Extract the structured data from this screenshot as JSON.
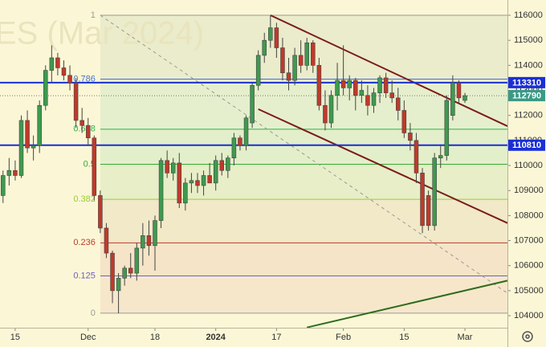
{
  "chart_data": {
    "type": "candlestick",
    "watermark": "ES (Mar 2024)",
    "open": [
      108800,
      109600,
      109800,
      109600,
      111800,
      110700,
      110800,
      112400,
      113800,
      114300,
      113900,
      113600,
      113300,
      111800,
      111600,
      111100,
      108800,
      107500,
      106500,
      105000,
      105500,
      105900,
      105700,
      106700,
      107200,
      106800,
      107800,
      110200,
      109700,
      110100,
      108500,
      109300,
      109400,
      109200,
      109600,
      109300,
      110200,
      109800,
      110300,
      111100,
      110800,
      111700,
      113200,
      114400,
      115000,
      115500,
      114700,
      113700,
      113400,
      114400,
      114000,
      114900,
      114000,
      112400,
      111700,
      112800,
      113400,
      113100,
      113400,
      112800,
      112800,
      112400,
      112900,
      113500,
      112900,
      112700,
      112200,
      111300,
      111000,
      109700,
      108800,
      107600,
      110300,
      110400,
      112000,
      113300,
      112600
    ],
    "high": [
      109800,
      110300,
      110200,
      112000,
      112200,
      111200,
      112600,
      114000,
      114800,
      114500,
      114200,
      114000,
      113500,
      112300,
      111900,
      111200,
      109000,
      107700,
      106600,
      105700,
      106000,
      106500,
      106900,
      107700,
      107800,
      108000,
      110300,
      110600,
      110300,
      110500,
      109500,
      109700,
      109700,
      109800,
      110100,
      110400,
      110500,
      110400,
      111300,
      111200,
      112000,
      113300,
      114600,
      115300,
      116000,
      115700,
      115100,
      114300,
      114700,
      115000,
      115100,
      115000,
      114300,
      113000,
      113000,
      114100,
      114800,
      113600,
      113500,
      113400,
      113200,
      113100,
      113600,
      113700,
      113400,
      113100,
      112600,
      111700,
      111300,
      109900,
      109000,
      110500,
      110800,
      112800,
      113600,
      113400,
      112900
    ],
    "low": [
      108500,
      109200,
      109400,
      109500,
      110500,
      110200,
      110500,
      112200,
      113300,
      113600,
      113400,
      113000,
      111500,
      111300,
      110800,
      108600,
      107300,
      106300,
      104500,
      104100,
      105200,
      105500,
      105400,
      106000,
      106400,
      105800,
      107500,
      109500,
      109400,
      108300,
      108200,
      108900,
      108900,
      108800,
      109300,
      109000,
      109600,
      109500,
      110000,
      110600,
      110600,
      111500,
      113000,
      114100,
      114700,
      114300,
      113400,
      113000,
      113200,
      113700,
      113800,
      113700,
      112200,
      111400,
      111500,
      112200,
      112800,
      112600,
      112200,
      112500,
      112000,
      112100,
      112500,
      112700,
      112500,
      111800,
      111100,
      110600,
      109300,
      107300,
      107400,
      107400,
      109900,
      110200,
      111800,
      112500,
      112500
    ],
    "close": [
      109600,
      109800,
      109600,
      111800,
      110700,
      110800,
      112400,
      113800,
      114300,
      113900,
      113600,
      113300,
      111800,
      111600,
      111100,
      108800,
      107500,
      106500,
      105000,
      105500,
      105900,
      105700,
      106700,
      107200,
      106800,
      107800,
      110200,
      109700,
      110100,
      108500,
      109300,
      109400,
      109200,
      109600,
      109300,
      110200,
      109800,
      110300,
      111100,
      110800,
      111900,
      113200,
      114400,
      115000,
      115500,
      114700,
      113700,
      113400,
      114400,
      114000,
      114900,
      114000,
      112400,
      111700,
      112800,
      113400,
      113100,
      113400,
      112800,
      113000,
      112400,
      112900,
      113500,
      112900,
      112700,
      112200,
      111300,
      111000,
      109700,
      107600,
      107600,
      110300,
      110400,
      112600,
      113300,
      112700,
      112790
    ],
    "up_color": "#3e9a4f",
    "down_color": "#c0392b",
    "xlim": [
      -0.5,
      83
    ],
    "xticks": [
      {
        "value": 2,
        "label": "15"
      },
      {
        "value": 14,
        "label": "Dec"
      },
      {
        "value": 25,
        "label": "18"
      },
      {
        "value": 35,
        "label": "2024"
      },
      {
        "value": 45,
        "label": "17"
      },
      {
        "value": 56,
        "label": "Feb"
      },
      {
        "value": 66,
        "label": "15"
      },
      {
        "value": 76,
        "label": "Mar"
      }
    ],
    "ylim": [
      103520,
      116610
    ],
    "yticks": [
      104000,
      105000,
      106000,
      107000,
      108000,
      109000,
      110000,
      111000,
      112000,
      113000,
      114000,
      115000,
      116000
    ],
    "fib_start": 16,
    "fib": [
      {
        "ratio": 1,
        "price": 116000,
        "color": "#999999"
      },
      {
        "ratio": 0.786,
        "price": 113450,
        "color": "#4a6fd0"
      },
      {
        "ratio": 0.618,
        "price": 111450,
        "color": "#2fb34d"
      },
      {
        "ratio": 0.5,
        "price": 110050,
        "color": "#33aa33"
      },
      {
        "ratio": 0.382,
        "price": 108650,
        "color": "#9acd32"
      },
      {
        "ratio": 0.236,
        "price": 106910,
        "color": "#c0392b"
      },
      {
        "ratio": 0.125,
        "price": 105590,
        "color": "#6f5fc0"
      },
      {
        "ratio": 0,
        "price": 104100,
        "color": "#999999"
      }
    ],
    "horizontal_lines": [
      {
        "value": 113310,
        "color": "#1a2fd6"
      },
      {
        "value": 110810,
        "color": "#1a2fd6"
      }
    ],
    "last_price": 112790,
    "last_price_color": "#3a9a86",
    "trendlines": [
      {
        "x": [
          44,
          83
        ],
        "y": [
          116000,
          111570
        ],
        "color": "#7b1c1c",
        "dash": false
      },
      {
        "x": [
          42,
          83
        ],
        "y": [
          112250,
          107700
        ],
        "color": "#7b1c1c",
        "dash": false
      },
      {
        "x": [
          16,
          83
        ],
        "y": [
          116000,
          104900
        ],
        "color": "#999999",
        "dash": true
      },
      {
        "x": [
          50,
          83
        ],
        "y": [
          103530,
          105400
        ],
        "color": "#2e6b1e",
        "dash": false
      }
    ]
  }
}
